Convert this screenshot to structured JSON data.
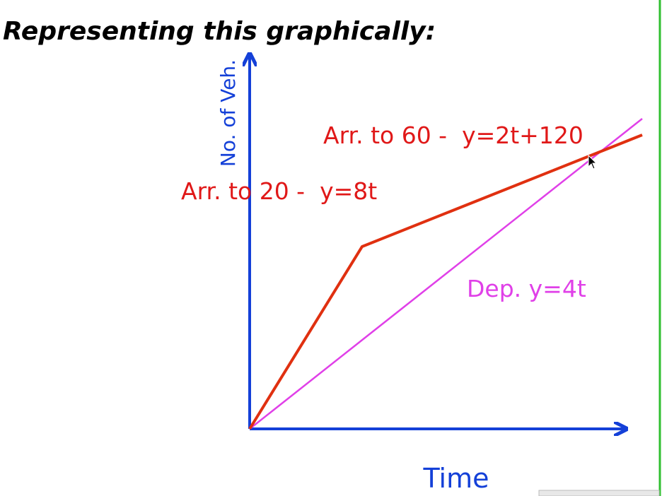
{
  "header": {
    "title": "Representing this graphically:"
  },
  "diagram": {
    "y_axis_label": "No. of Veh.",
    "x_axis_label": "Time",
    "labels": [
      "Arr. to 60 -  y=2t+120",
      "Arr. to 20 -  y=8t",
      "Dep. y=4t"
    ]
  }
}
